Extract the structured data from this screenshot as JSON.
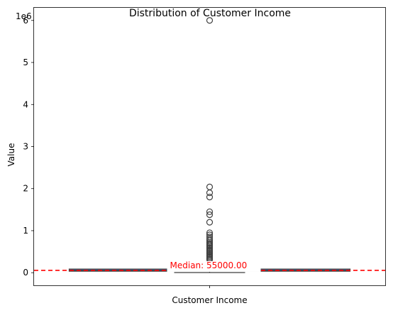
{
  "chart_data": {
    "type": "box",
    "title": "Distribution of Customer Income",
    "xlabel": "",
    "ylabel": "Value",
    "y_offset_label": "1e6",
    "categories": [
      "Customer Income"
    ],
    "ylim": [
      -300000,
      6300000
    ],
    "yticks": [
      0,
      1000000,
      2000000,
      3000000,
      4000000,
      5000000,
      6000000
    ],
    "ytick_labels": [
      "0",
      "1",
      "2",
      "3",
      "4",
      "5",
      "6"
    ],
    "box": {
      "q1": 35000,
      "median": 55000,
      "q3": 87000,
      "whisker_low": 4000,
      "whisker_high": 150000
    },
    "outliers": [
      6000000,
      2040000,
      1900000,
      1800000,
      1450000,
      1380000,
      1200000,
      950000,
      900000,
      850000,
      800000,
      760000,
      720000,
      690000,
      660000,
      630000,
      600000,
      570000,
      540000,
      510000,
      480000,
      450000,
      420000,
      390000,
      360000,
      330000,
      310000
    ],
    "median_line": {
      "value": 55000,
      "label": "Median: 55000.00",
      "color": "#ff0000",
      "style": "dashed"
    },
    "colors": {
      "box_fill": "#3a75b0",
      "box_edge": "#3f3f3f",
      "outlier_edge": "#3f3f3f",
      "median_line": "#ff0000"
    },
    "grid": false,
    "legend": "none"
  }
}
